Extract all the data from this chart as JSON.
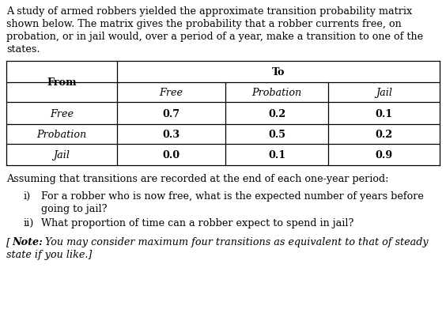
{
  "para": "A study of armed robbers yielded the approximate transition probability matrix\nshown below. The matrix gives the probability that a robber currents free, on\nprobation, or in jail would, over a period of a year, make a transition to one of the\nstates.",
  "table_header_to": "To",
  "table_col_from": "From",
  "table_cols": [
    "Free",
    "Probation",
    "Jail"
  ],
  "table_rows": [
    "Free",
    "Probation",
    "Jail"
  ],
  "table_data": [
    [
      "0.7",
      "0.2",
      "0.1"
    ],
    [
      "0.3",
      "0.5",
      "0.2"
    ],
    [
      "0.0",
      "0.1",
      "0.9"
    ]
  ],
  "assumption_text": "Assuming that transitions are recorded at the end of each one-year period:",
  "qi_label": "i)",
  "qi_line1": "For a robber who is now free, what is the expected number of years before",
  "qi_line2": "going to jail?",
  "qii_label": "ii)",
  "qii_text": "What proportion of time can a robber expect to spend in jail?",
  "note_bracket_open": "[",
  "note_bold_italic": "Note:",
  "note_italic": " You may consider maximum four transitions as equivalent to that of steady",
  "note_italic2": "state if you like.]",
  "bg_color": "#ffffff",
  "text_color": "#000000",
  "fs": 9.2,
  "lw": 0.9
}
